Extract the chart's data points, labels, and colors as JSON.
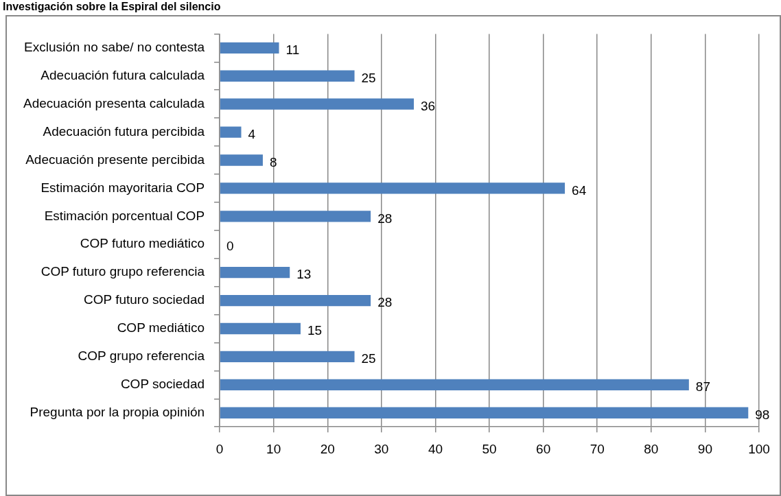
{
  "chart_data": {
    "type": "bar",
    "orientation": "horizontal",
    "title": "Investigación sobre la Espiral del silencio",
    "categories": [
      "Exclusión no sabe/ no contesta",
      "Adecuación futura calculada",
      "Adecuación presenta calculada",
      "Adecuación futura percibida",
      "Adecuación presente percibida",
      "Estimación mayoritaria COP",
      "Estimación porcentual COP",
      "COP futuro mediático",
      "COP futuro grupo referencia",
      "COP futuro sociedad",
      "COP mediático",
      "COP grupo referencia",
      "COP sociedad",
      "Pregunta por la propia opinión"
    ],
    "values": [
      11,
      25,
      36,
      4,
      8,
      64,
      28,
      0,
      13,
      28,
      15,
      25,
      87,
      98
    ],
    "color": "#4f81bd",
    "xlim": [
      0,
      100
    ],
    "xticks": [
      0,
      10,
      20,
      30,
      40,
      50,
      60,
      70,
      80,
      90,
      100
    ],
    "grid": "x",
    "legend": false,
    "data_labels": true
  }
}
